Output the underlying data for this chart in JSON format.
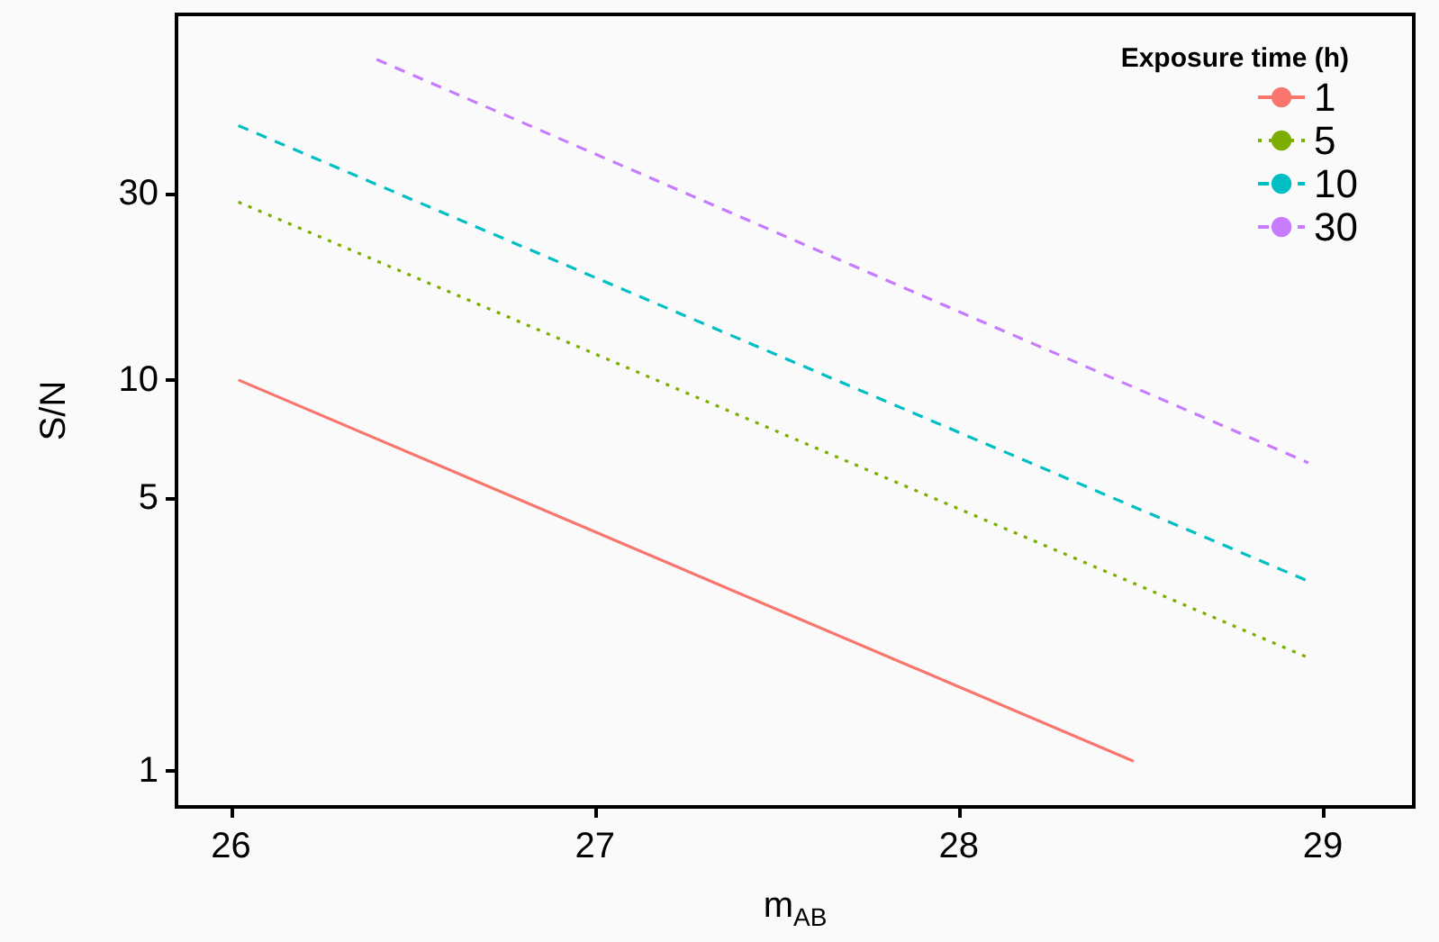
{
  "chart_data": {
    "type": "line",
    "xlabel": "m$_{AB}$",
    "ylabel": "S/N",
    "legend_title": "Exposure time (h)",
    "series": [
      {
        "name": "1",
        "color": "#f8766d",
        "line_style": "solid",
        "x": [
          26.02,
          28.48
        ],
        "values": [
          10,
          1.06
        ]
      },
      {
        "name": "5",
        "color": "#7cae00",
        "line_style": "dotted",
        "x": [
          26.02,
          28.96
        ],
        "values": [
          28.5,
          1.95
        ]
      },
      {
        "name": "10",
        "color": "#00bfc4",
        "line_style": "dashed",
        "x": [
          26.02,
          28.96
        ],
        "values": [
          44.7,
          3.06
        ]
      },
      {
        "name": "30",
        "color": "#c77cff",
        "line_style": "dashed",
        "x": [
          26.4,
          28.96
        ],
        "values": [
          66,
          6.14
        ]
      }
    ],
    "xlim": [
      25.85,
      29.25
    ],
    "xticks": [
      26,
      27,
      28,
      29
    ],
    "ylim": [
      0.81,
      86
    ],
    "yticks": [
      1,
      5,
      10,
      30
    ],
    "log": "y",
    "grid": false,
    "legend": "top right",
    "marker": "none"
  }
}
